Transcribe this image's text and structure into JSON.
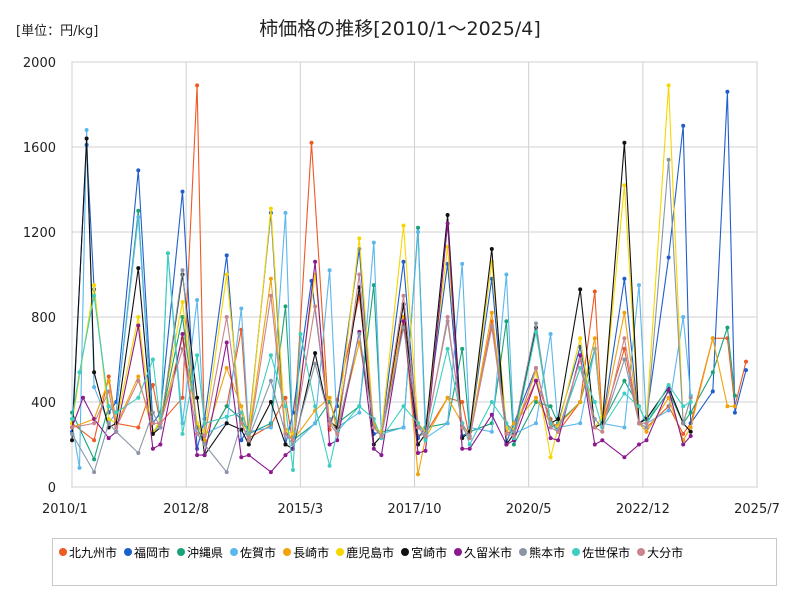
{
  "chart_data": {
    "type": "line",
    "title": "柿価格の推移[2010/1～2025/4]",
    "unit_label": "[単位：円/kg]",
    "ylim": [
      0,
      2000
    ],
    "y_ticks": [
      "0",
      "400",
      "800",
      "1200",
      "1600",
      "2000"
    ],
    "x_range": [
      2010.0,
      2025.5
    ],
    "x_ticks": [
      {
        "label": "2010/1",
        "value": 2010.0
      },
      {
        "label": "2012/8",
        "value": 2012.583
      },
      {
        "label": "2015/3",
        "value": 2015.167
      },
      {
        "label": "2017/10",
        "value": 2017.75
      },
      {
        "label": "2020/5",
        "value": 2020.333
      },
      {
        "label": "2022/12",
        "value": 2022.917
      },
      {
        "label": "2025/7",
        "value": 2025.5
      }
    ],
    "grid": true,
    "series": [
      {
        "name": "北九州市",
        "color": "#ee5a24",
        "x": [
          2010.0,
          2010.5,
          2010.83,
          2011.0,
          2011.5,
          2011.83,
          2012.0,
          2012.5,
          2012.83,
          2013.0,
          2013.5,
          2013.83,
          2014.0,
          2014.5,
          2014.83,
          2015.0,
          2015.42,
          2015.83,
          2016.0,
          2016.5,
          2016.83,
          2017.0,
          2017.5,
          2017.83,
          2018.0,
          2018.5,
          2018.83,
          2019.0,
          2019.5,
          2019.83,
          2020.0,
          2020.5,
          2020.83,
          2021.0,
          2021.5,
          2021.83,
          2022.0,
          2022.5,
          2022.83,
          2023.0,
          2023.5,
          2023.83,
          2024.0,
          2024.5,
          2024.83,
          2025.0,
          2025.25
        ],
        "y": [
          300,
          220,
          520,
          300,
          280,
          480,
          300,
          420,
          1890,
          200,
          380,
          740,
          230,
          290,
          420,
          200,
          1620,
          270,
          410,
          900,
          290,
          240,
          800,
          240,
          250,
          420,
          400,
          230,
          780,
          250,
          270,
          500,
          320,
          260,
          400,
          920,
          300,
          650,
          300,
          280,
          380,
          250,
          300,
          700,
          700,
          380,
          590
        ]
      },
      {
        "name": "福岡市",
        "color": "#1f5ecb",
        "x": [
          2010.0,
          2010.33,
          2010.5,
          2010.83,
          2011.0,
          2011.5,
          2011.83,
          2012.0,
          2012.5,
          2012.83,
          2013.0,
          2013.5,
          2013.83,
          2014.0,
          2014.5,
          2014.83,
          2015.0,
          2015.42,
          2015.83,
          2016.0,
          2016.5,
          2016.83,
          2017.0,
          2017.5,
          2017.83,
          2018.0,
          2018.5,
          2018.83,
          2019.0,
          2019.5,
          2019.83,
          2020.0,
          2020.5,
          2020.83,
          2021.0,
          2021.5,
          2021.83,
          2022.0,
          2022.5,
          2022.83,
          2023.0,
          2023.5,
          2023.83,
          2024.0,
          2024.5,
          2024.83,
          2025.0,
          2025.25
        ],
        "y": [
          260,
          1610,
          930,
          350,
          400,
          1490,
          300,
          350,
          1390,
          180,
          320,
          1090,
          220,
          280,
          1290,
          200,
          350,
          970,
          300,
          380,
          1120,
          250,
          260,
          1060,
          230,
          280,
          1050,
          240,
          260,
          980,
          210,
          300,
          560,
          280,
          300,
          660,
          280,
          300,
          980,
          300,
          330,
          1080,
          1700,
          300,
          450,
          1860,
          350,
          550
        ]
      },
      {
        "name": "沖縄県",
        "color": "#1aa37a",
        "x": [
          2010.0,
          2010.5,
          2010.83,
          2011.0,
          2011.5,
          2011.83,
          2012.0,
          2012.5,
          2012.83,
          2013.0,
          2013.5,
          2013.83,
          2014.0,
          2014.5,
          2014.83,
          2015.0,
          2015.5,
          2015.83,
          2016.0,
          2016.5,
          2016.83,
          2017.0,
          2017.5,
          2017.83,
          2018.0,
          2018.5,
          2018.83,
          2019.0,
          2019.5,
          2019.83,
          2020.0,
          2020.5,
          2020.83,
          2021.0,
          2021.5,
          2021.83,
          2022.0,
          2022.5,
          2022.83,
          2023.0,
          2023.5,
          2023.83,
          2024.0,
          2024.5,
          2024.83,
          2025.0
        ],
        "y": [
          350,
          130,
          380,
          350,
          1300,
          250,
          300,
          800,
          280,
          200,
          380,
          320,
          250,
          300,
          850,
          220,
          300,
          400,
          300,
          380,
          950,
          260,
          280,
          1220,
          280,
          300,
          650,
          260,
          300,
          780,
          200,
          400,
          380,
          300,
          400,
          650,
          300,
          500,
          380,
          300,
          450,
          300,
          350,
          540,
          750,
          430
        ]
      },
      {
        "name": "佐賀市",
        "color": "#5bb7ec",
        "x": [
          2010.0,
          2010.17,
          2010.33,
          2010.5,
          2010.83,
          2011.0,
          2011.5,
          2011.83,
          2012.0,
          2012.17,
          2012.5,
          2012.83,
          2013.0,
          2013.5,
          2013.83,
          2014.0,
          2014.5,
          2014.83,
          2015.0,
          2015.5,
          2015.83,
          2016.0,
          2016.5,
          2016.83,
          2017.0,
          2017.5,
          2017.83,
          2018.0,
          2018.5,
          2018.83,
          2019.0,
          2019.5,
          2019.83,
          2020.0,
          2020.5,
          2020.83,
          2021.0,
          2021.5,
          2021.83,
          2022.0,
          2022.5,
          2022.83,
          2023.0,
          2023.5,
          2023.83,
          2024.0
        ],
        "y": [
          300,
          90,
          1680,
          470,
          300,
          350,
          1270,
          250,
          300,
          1100,
          300,
          880,
          250,
          300,
          840,
          260,
          280,
          1290,
          200,
          300,
          1020,
          280,
          350,
          1150,
          250,
          280,
          1200,
          230,
          300,
          1050,
          280,
          260,
          1000,
          250,
          300,
          720,
          280,
          300,
          650,
          300,
          280,
          950,
          300,
          360,
          800,
          430
        ]
      },
      {
        "name": "長崎市",
        "color": "#f0a30a",
        "x": [
          2010.0,
          2010.5,
          2010.83,
          2011.0,
          2011.5,
          2011.83,
          2012.0,
          2012.5,
          2012.83,
          2013.0,
          2013.5,
          2013.83,
          2014.0,
          2014.5,
          2014.83,
          2015.0,
          2015.5,
          2015.83,
          2016.0,
          2016.5,
          2016.83,
          2017.0,
          2017.5,
          2017.83,
          2018.0,
          2018.5,
          2018.83,
          2019.0,
          2019.5,
          2019.83,
          2020.0,
          2020.5,
          2020.83,
          2021.0,
          2021.5,
          2021.83,
          2022.0,
          2022.5,
          2022.83,
          2023.0,
          2023.5,
          2023.83,
          2024.0,
          2024.5,
          2024.83,
          2025.0
        ],
        "y": [
          280,
          320,
          500,
          290,
          520,
          260,
          300,
          700,
          300,
          220,
          560,
          380,
          240,
          980,
          270,
          220,
          360,
          420,
          260,
          680,
          300,
          240,
          800,
          60,
          230,
          420,
          300,
          240,
          820,
          260,
          300,
          420,
          300,
          290,
          400,
          700,
          300,
          820,
          300,
          260,
          420,
          220,
          280,
          700,
          380,
          380
        ]
      },
      {
        "name": "鹿児島市",
        "color": "#f7d600",
        "x": [
          2010.0,
          2010.5,
          2010.83,
          2011.0,
          2011.5,
          2011.83,
          2012.0,
          2012.5,
          2012.83,
          2013.0,
          2013.5,
          2013.83,
          2014.0,
          2014.5,
          2014.83,
          2015.0,
          2015.5,
          2015.83,
          2016.0,
          2016.5,
          2016.83,
          2017.0,
          2017.5,
          2017.83,
          2018.0,
          2018.5,
          2018.83,
          2019.0,
          2019.5,
          2019.83,
          2020.0,
          2020.5,
          2020.83,
          2021.0,
          2021.5,
          2021.83,
          2022.0,
          2022.5,
          2022.83,
          2023.0,
          2023.5,
          2023.83,
          2024.0
        ],
        "y": [
          300,
          950,
          320,
          300,
          800,
          250,
          320,
          870,
          300,
          260,
          1000,
          300,
          260,
          1310,
          260,
          250,
          1000,
          300,
          280,
          1170,
          280,
          260,
          1230,
          300,
          260,
          1130,
          280,
          260,
          1060,
          280,
          270,
          540,
          140,
          280,
          700,
          280,
          330,
          1420,
          300,
          320,
          1890,
          300,
          420
        ]
      },
      {
        "name": "宮崎市",
        "color": "#111111",
        "x": [
          2010.0,
          2010.33,
          2010.5,
          2010.83,
          2011.0,
          2011.5,
          2011.83,
          2012.0,
          2012.5,
          2012.83,
          2013.0,
          2013.5,
          2013.83,
          2014.0,
          2014.5,
          2014.83,
          2015.0,
          2015.5,
          2015.83,
          2016.0,
          2016.5,
          2016.83,
          2017.0,
          2017.5,
          2017.83,
          2018.0,
          2018.5,
          2018.83,
          2019.0,
          2019.5,
          2019.83,
          2020.0,
          2020.5,
          2020.83,
          2021.0,
          2021.5,
          2021.83,
          2022.0,
          2022.5,
          2022.83,
          2023.0,
          2023.5,
          2023.83,
          2024.0
        ],
        "y": [
          220,
          1640,
          540,
          280,
          300,
          1030,
          250,
          280,
          1000,
          420,
          150,
          300,
          270,
          200,
          400,
          200,
          180,
          630,
          310,
          280,
          940,
          200,
          240,
          860,
          200,
          250,
          1280,
          230,
          260,
          1120,
          200,
          250,
          750,
          300,
          320,
          930,
          280,
          300,
          1620,
          300,
          320,
          470,
          300,
          260
        ]
      },
      {
        "name": "久留米市",
        "color": "#8b1a8f",
        "x": [
          2010.0,
          2010.25,
          2010.5,
          2010.83,
          2011.0,
          2011.5,
          2011.83,
          2012.0,
          2012.5,
          2012.83,
          2013.0,
          2013.5,
          2013.83,
          2014.0,
          2014.5,
          2014.83,
          2015.0,
          2015.5,
          2015.83,
          2016.0,
          2016.5,
          2016.83,
          2017.0,
          2017.5,
          2017.83,
          2018.0,
          2018.5,
          2018.83,
          2019.0,
          2019.5,
          2019.83,
          2020.0,
          2020.5,
          2020.83,
          2021.0,
          2021.5,
          2021.83,
          2022.0,
          2022.5,
          2022.83,
          2023.0,
          2023.5,
          2023.83,
          2024.0
        ],
        "y": [
          280,
          420,
          320,
          230,
          260,
          760,
          180,
          200,
          720,
          150,
          150,
          680,
          140,
          150,
          70,
          150,
          180,
          1060,
          200,
          220,
          730,
          180,
          150,
          780,
          160,
          170,
          1240,
          180,
          180,
          340,
          200,
          220,
          500,
          230,
          220,
          620,
          200,
          220,
          140,
          200,
          220,
          460,
          200,
          240
        ]
      },
      {
        "name": "熊本市",
        "color": "#8a96a8",
        "x": [
          2010.0,
          2010.5,
          2010.83,
          2011.0,
          2011.5,
          2011.83,
          2012.0,
          2012.5,
          2012.83,
          2013.0,
          2013.5,
          2013.83,
          2014.0,
          2014.5,
          2014.83,
          2015.0,
          2015.5,
          2015.83,
          2016.0,
          2016.5,
          2016.83,
          2017.0,
          2017.5,
          2017.83,
          2018.0,
          2018.5,
          2018.83,
          2019.0,
          2019.5,
          2019.83,
          2020.0,
          2020.5,
          2020.83,
          2021.0,
          2021.5,
          2021.83,
          2022.0,
          2022.5,
          2022.83,
          2023.0,
          2023.5,
          2023.83,
          2024.0
        ],
        "y": [
          250,
          70,
          300,
          260,
          160,
          350,
          280,
          1020,
          250,
          200,
          70,
          300,
          230,
          500,
          250,
          200,
          580,
          320,
          260,
          720,
          280,
          240,
          750,
          300,
          250,
          780,
          300,
          240,
          750,
          300,
          260,
          770,
          300,
          270,
          560,
          320,
          280,
          600,
          300,
          280,
          1540,
          300,
          420
        ]
      },
      {
        "name": "佐世保市",
        "color": "#3ccfc0",
        "x": [
          2010.0,
          2010.17,
          2010.5,
          2010.83,
          2011.0,
          2011.5,
          2011.83,
          2012.0,
          2012.17,
          2012.5,
          2012.83,
          2013.0,
          2013.5,
          2013.83,
          2014.0,
          2014.5,
          2014.83,
          2015.0,
          2015.17,
          2015.5,
          2015.83,
          2016.0,
          2016.5,
          2016.83,
          2017.0,
          2017.5,
          2017.83,
          2018.0,
          2018.5,
          2018.83,
          2019.0,
          2019.5,
          2019.83,
          2020.0,
          2020.5,
          2020.83,
          2021.0,
          2021.5,
          2021.83,
          2022.0,
          2022.5,
          2022.83,
          2023.0,
          2023.5,
          2023.83,
          2024.0
        ],
        "y": [
          320,
          540,
          900,
          380,
          350,
          420,
          600,
          300,
          1100,
          250,
          620,
          300,
          330,
          350,
          250,
          620,
          380,
          80,
          720,
          380,
          100,
          260,
          380,
          320,
          230,
          380,
          300,
          220,
          650,
          300,
          200,
          400,
          300,
          230,
          730,
          300,
          260,
          560,
          400,
          280,
          440,
          380,
          300,
          480,
          380,
          400
        ]
      },
      {
        "name": "大分市",
        "color": "#c9858e",
        "x": [
          2010.0,
          2010.5,
          2010.83,
          2011.0,
          2011.5,
          2011.83,
          2012.0,
          2012.5,
          2012.83,
          2013.0,
          2013.5,
          2013.83,
          2014.0,
          2014.5,
          2014.83,
          2015.0,
          2015.5,
          2015.83,
          2016.0,
          2016.5,
          2016.83,
          2017.0,
          2017.5,
          2017.83,
          2018.0,
          2018.5,
          2018.83,
          2019.0,
          2019.5,
          2019.83,
          2020.0,
          2020.5,
          2020.83,
          2021.0,
          2021.5,
          2021.83,
          2022.0,
          2022.5,
          2022.83,
          2023.0
        ],
        "y": [
          280,
          300,
          450,
          280,
          500,
          300,
          300,
          650,
          250,
          240,
          800,
          300,
          220,
          900,
          250,
          220,
          850,
          300,
          250,
          1000,
          280,
          240,
          900,
          280,
          240,
          800,
          280,
          230,
          760,
          250,
          240,
          560,
          280,
          260,
          600,
          280,
          260,
          700,
          300,
          300
        ]
      }
    ]
  }
}
